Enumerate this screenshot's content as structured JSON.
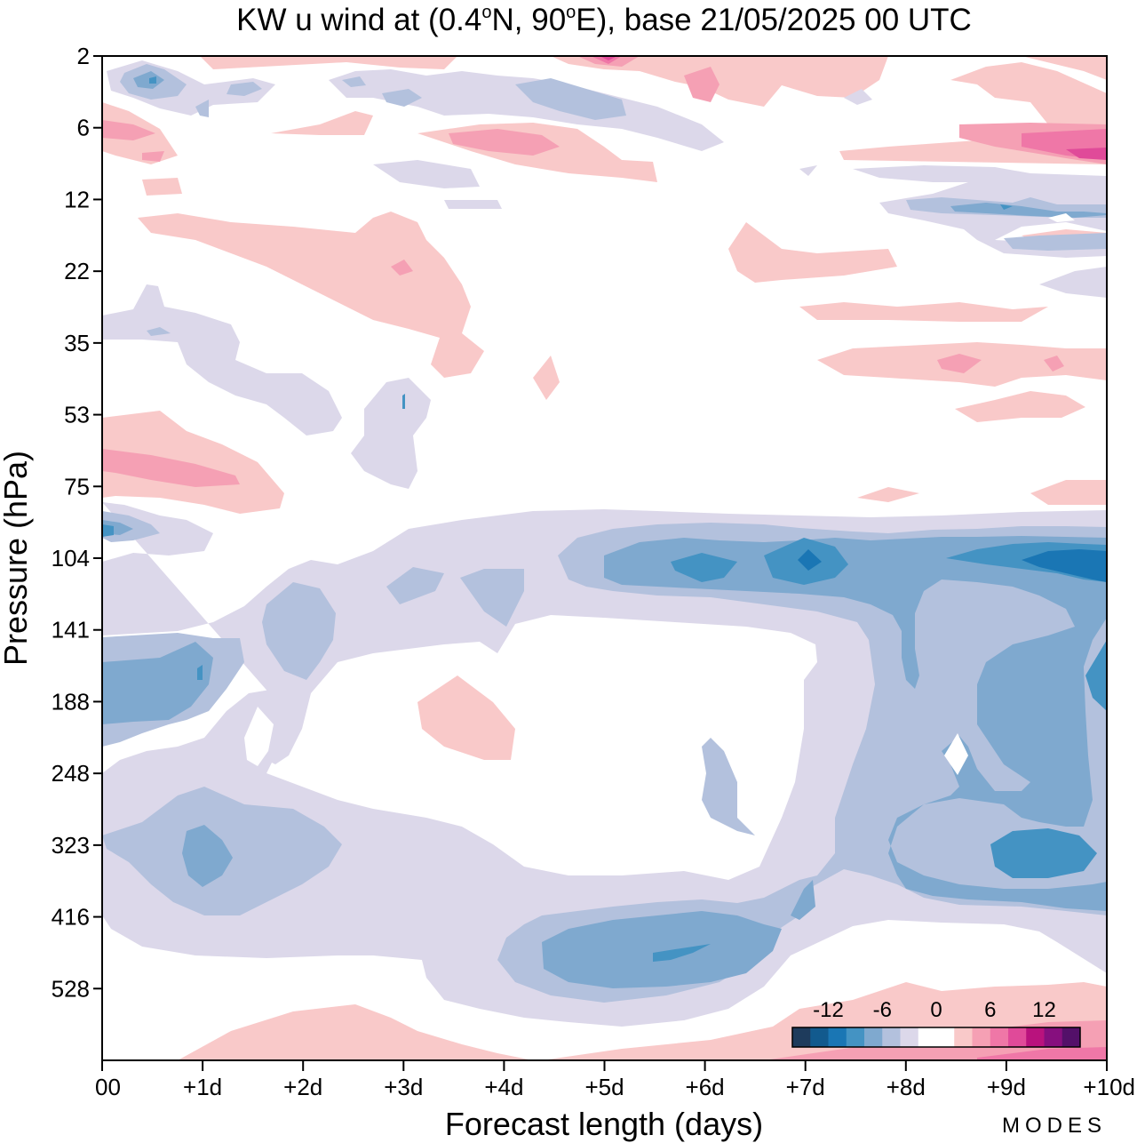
{
  "chart_data": {
    "type": "heatmap",
    "title": "KW u wind at (0.4°N, 90°E),  base 21/05/2025  00 UTC",
    "title_parts": {
      "pre": "KW u wind at (0.4",
      "deg1": "o",
      "mid": "N, 90",
      "deg2": "o",
      "post": "E),  base 21/05/2025  00 UTC"
    },
    "xlabel": "Forecast length (days)",
    "ylabel": "Pressure (hPa)",
    "x_ticks": [
      "00",
      "+1d",
      "+2d",
      "+3d",
      "+4d",
      "+5d",
      "+6d",
      "+7d",
      "+8d",
      "+9d",
      "+10d"
    ],
    "y_ticks": [
      "2",
      "6",
      "12",
      "22",
      "35",
      "53",
      "75",
      "104",
      "141",
      "188",
      "248",
      "323",
      "416",
      "528"
    ],
    "xlim": [
      0,
      10
    ],
    "legend": {
      "placement": "bottom-right",
      "labels": [
        "-12",
        "-6",
        "0",
        "6",
        "12"
      ],
      "colors": [
        "#1e3b5c",
        "#125a8e",
        "#1a76b4",
        "#4493c3",
        "#7fa9cf",
        "#b3c1dd",
        "#dcd8ea",
        "#ffffff",
        "#ffffff",
        "#f9c9c9",
        "#f5a0b4",
        "#ef77a7",
        "#e04a99",
        "#b9127d",
        "#860f7e",
        "#531069"
      ]
    },
    "contour_colors": {
      "neg2": "#dcd8ea",
      "neg4": "#b3c1dd",
      "neg6": "#7fa9cf",
      "neg8": "#4493c3",
      "neg10": "#1a76b4",
      "pos2": "#f9c9c9",
      "pos4": "#f5a0b4",
      "pos6": "#ef77a7",
      "pos8": "#e04a99"
    },
    "grid": false
  },
  "watermark": "MODES"
}
